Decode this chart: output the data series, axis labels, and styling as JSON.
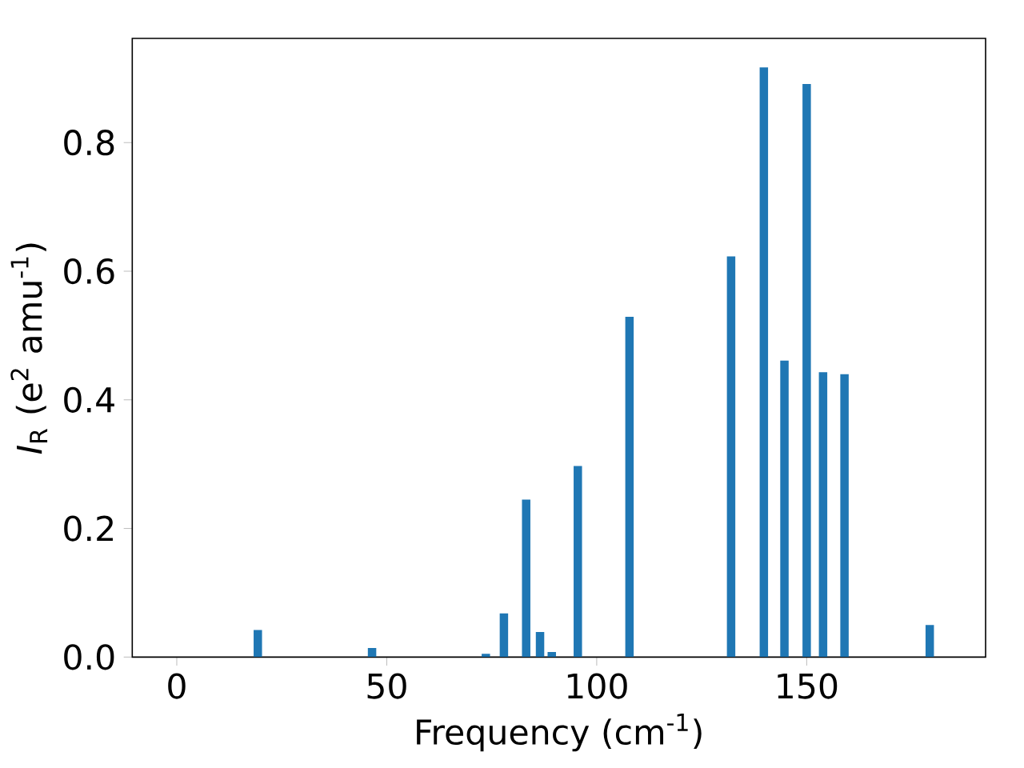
{
  "chart_data": {
    "type": "bar",
    "xlabel": "Frequency (cm$^{-1}$)",
    "ylabel": "*I*$_{R}$ (e$^{2}$ amu$^{-1}$)",
    "x": [
      19.3,
      46.5,
      73.6,
      77.9,
      83.2,
      86.5,
      89.3,
      95.5,
      107.8,
      132.0,
      139.8,
      144.7,
      150.0,
      153.9,
      159.0,
      179.3
    ],
    "values": [
      0.042,
      0.014,
      0.005,
      0.068,
      0.245,
      0.039,
      0.008,
      0.297,
      0.529,
      0.623,
      0.917,
      0.461,
      0.891,
      0.443,
      0.44,
      0.05
    ],
    "color": "#1f77b4",
    "xlim": [
      -10.6,
      192.6
    ],
    "ylim": [
      0,
      0.962
    ],
    "xticks": [
      0,
      50,
      100,
      150
    ],
    "yticks": [
      {
        "value": 0,
        "label": "0.0"
      },
      {
        "value": 0.2,
        "label": "0.2"
      },
      {
        "value": 0.4,
        "label": "0.4"
      },
      {
        "value": 0.6,
        "label": "0.6"
      },
      {
        "value": 0.8,
        "label": "0.8"
      }
    ]
  }
}
